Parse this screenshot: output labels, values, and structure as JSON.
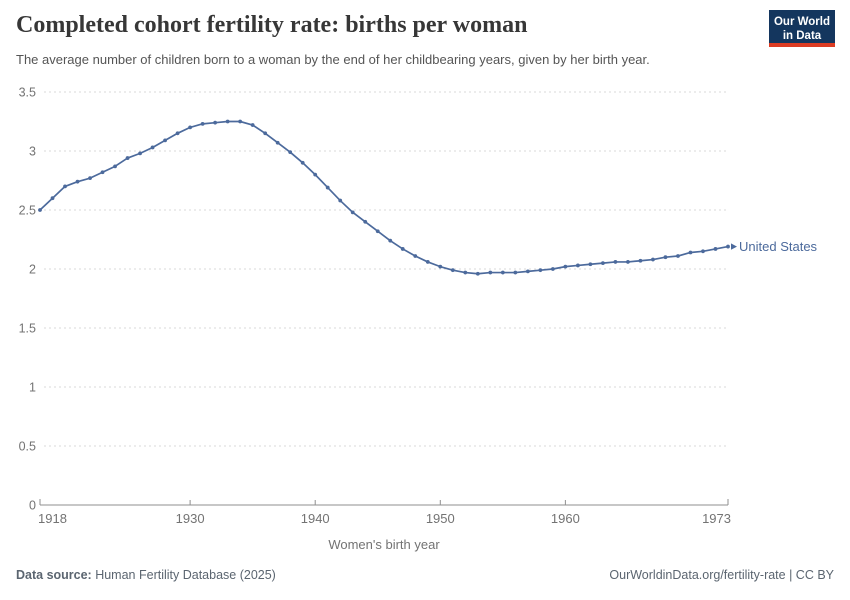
{
  "header": {
    "title": "Completed cohort fertility rate: births per woman",
    "subtitle": "The average number of children born to a woman by the end of her childbearing years, given by her birth year."
  },
  "logo": {
    "line1": "Our World",
    "line2": "in Data"
  },
  "chart_data": {
    "type": "line",
    "title": "Completed cohort fertility rate: births per woman",
    "xlabel": "Women's birth year",
    "ylabel": "",
    "ylim": [
      0,
      3.5
    ],
    "yticks": [
      0,
      0.5,
      1,
      1.5,
      2,
      2.5,
      3,
      3.5
    ],
    "ytick_labels": [
      "0",
      "0.5",
      "1",
      "1.5",
      "2",
      "2.5",
      "3",
      "3.5"
    ],
    "xticks": [
      1918,
      1930,
      1940,
      1950,
      1960,
      1973
    ],
    "xtick_labels": [
      "1918",
      "1930",
      "1940",
      "1950",
      "1960",
      "1973"
    ],
    "grid": "dashed-horizontal",
    "legend_position": "end-of-line",
    "x": [
      1918,
      1919,
      1920,
      1921,
      1922,
      1923,
      1924,
      1925,
      1926,
      1927,
      1928,
      1929,
      1930,
      1931,
      1932,
      1933,
      1934,
      1935,
      1936,
      1937,
      1938,
      1939,
      1940,
      1941,
      1942,
      1943,
      1944,
      1945,
      1946,
      1947,
      1948,
      1949,
      1950,
      1951,
      1952,
      1953,
      1954,
      1955,
      1956,
      1957,
      1958,
      1959,
      1960,
      1961,
      1962,
      1963,
      1964,
      1965,
      1966,
      1967,
      1968,
      1969,
      1970,
      1971,
      1972,
      1973
    ],
    "series": [
      {
        "name": "United States",
        "color": "#4C6A9C",
        "values": [
          2.5,
          2.6,
          2.7,
          2.74,
          2.77,
          2.82,
          2.87,
          2.94,
          2.98,
          3.03,
          3.09,
          3.15,
          3.2,
          3.23,
          3.24,
          3.25,
          3.25,
          3.22,
          3.15,
          3.07,
          2.99,
          2.9,
          2.8,
          2.69,
          2.58,
          2.48,
          2.4,
          2.32,
          2.24,
          2.17,
          2.11,
          2.06,
          2.02,
          1.99,
          1.97,
          1.96,
          1.97,
          1.97,
          1.97,
          1.98,
          1.99,
          2.0,
          2.02,
          2.03,
          2.04,
          2.05,
          2.06,
          2.06,
          2.07,
          2.08,
          2.1,
          2.11,
          2.14,
          2.15,
          2.17,
          2.19
        ]
      }
    ]
  },
  "footer": {
    "source_label": "Data source:",
    "source_value": " Human Fertility Database (2025)",
    "attribution": "OurWorldinData.org/fertility-rate | CC BY"
  },
  "colors": {
    "series": "#4C6A9C",
    "logo_navy": "#14365E",
    "logo_red": "#DC3C23",
    "gridline": "#D9D9D9",
    "axis": "#8F8F8F",
    "tick_label": "#737373",
    "title_text": "#373737",
    "subtitle_text": "#555555",
    "footer_text": "#5B6570"
  }
}
